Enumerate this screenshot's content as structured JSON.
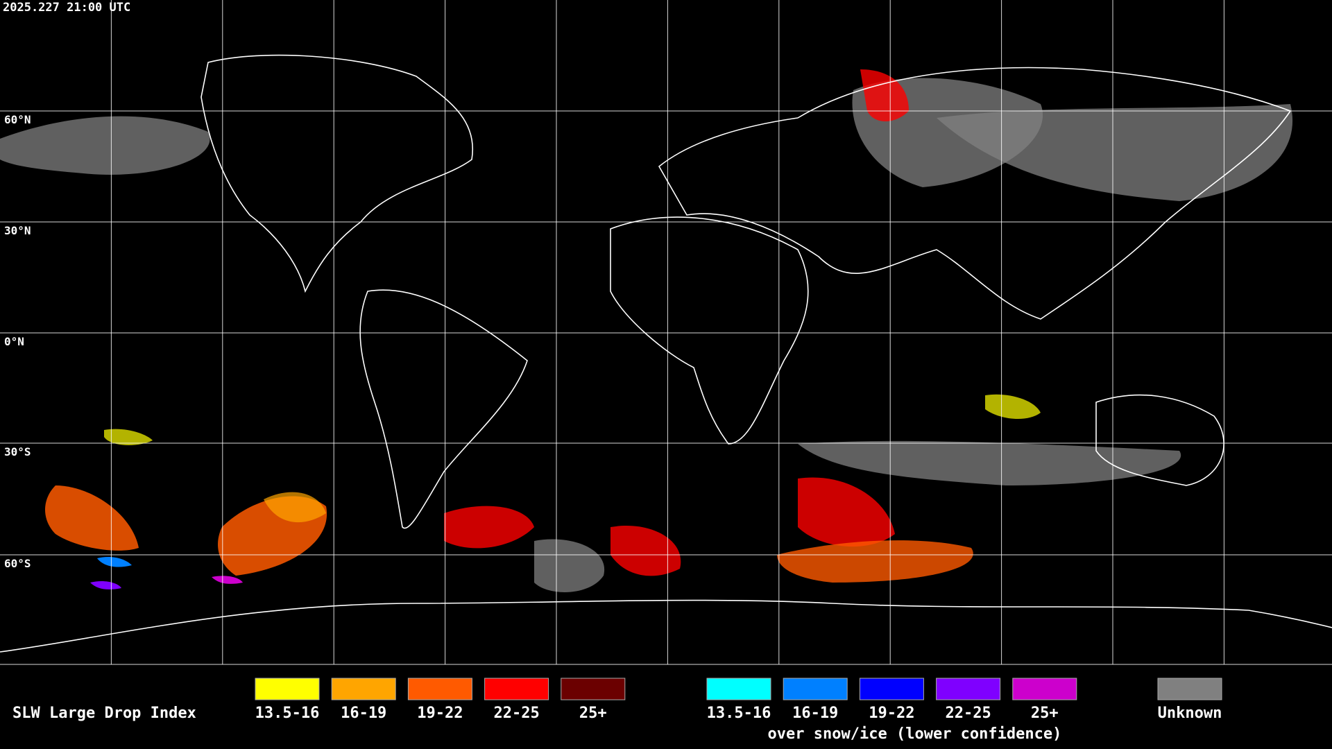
{
  "timestamp": "2025.227 21:00 UTC",
  "latitude_labels": [
    "60°N",
    "30°N",
    "0°N",
    "30°S",
    "60°S"
  ],
  "legend": {
    "title": "SLW Large Drop Index",
    "groups": [
      {
        "items": [
          {
            "label": "13.5-16",
            "color": "#ffff00"
          },
          {
            "label": "16-19",
            "color": "#ffa500"
          },
          {
            "label": "19-22",
            "color": "#ff5a00"
          },
          {
            "label": "22-25",
            "color": "#ff0000"
          },
          {
            "label": "25+",
            "color": "#6b0000"
          }
        ]
      },
      {
        "items": [
          {
            "label": "13.5-16",
            "color": "#00ffff"
          },
          {
            "label": "16-19",
            "color": "#0080ff"
          },
          {
            "label": "19-22",
            "color": "#0000ff"
          },
          {
            "label": "22-25",
            "color": "#7f00ff"
          },
          {
            "label": "25+",
            "color": "#cc00cc"
          }
        ],
        "caption": "over snow/ice (lower confidence)"
      }
    ],
    "unknown": {
      "label": "Unknown",
      "color": "#808080"
    }
  }
}
